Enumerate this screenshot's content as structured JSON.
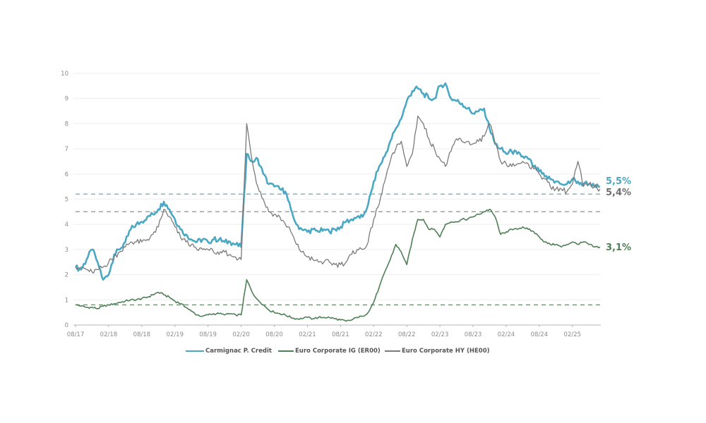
{
  "chart_data": {
    "type": "line",
    "title": "",
    "xlabel": "",
    "ylabel": "",
    "ylim": [
      0,
      10
    ],
    "yticks": [
      "0",
      "1",
      "2",
      "3",
      "4",
      "5",
      "6",
      "7",
      "8",
      "9",
      "10"
    ],
    "grid": true,
    "x_start": "08/17",
    "x_step": "1 month",
    "xticks": [
      {
        "label": "08/17",
        "index": 0
      },
      {
        "label": "02/18",
        "index": 6
      },
      {
        "label": "08/18",
        "index": 12
      },
      {
        "label": "02/19",
        "index": 18
      },
      {
        "label": "08/19",
        "index": 24
      },
      {
        "label": "02/20",
        "index": 30
      },
      {
        "label": "08/20",
        "index": 36
      },
      {
        "label": "02/21",
        "index": 42
      },
      {
        "label": "08/21",
        "index": 48
      },
      {
        "label": "02/22",
        "index": 54
      },
      {
        "label": "08/22",
        "index": 60
      },
      {
        "label": "02/23",
        "index": 66
      },
      {
        "label": "08/23",
        "index": 72
      },
      {
        "label": "02/24",
        "index": 78
      },
      {
        "label": "08/24",
        "index": 84
      },
      {
        "label": "02/25",
        "index": 90
      }
    ],
    "series": [
      {
        "name": "Carmignac P. Credit",
        "color": "#4aa8c4",
        "end_label": "5,5%",
        "reference_line": 5.2,
        "values": [
          2.3,
          2.2,
          2.6,
          3.0,
          2.5,
          1.8,
          2.0,
          2.8,
          3.0,
          3.3,
          3.8,
          4.0,
          4.1,
          4.3,
          4.4,
          4.6,
          4.9,
          4.6,
          4.2,
          3.8,
          3.6,
          3.4,
          3.3,
          3.4,
          3.3,
          3.4,
          3.4,
          3.3,
          3.3,
          3.2,
          3.1,
          6.8,
          6.5,
          6.6,
          6.0,
          5.6,
          5.5,
          5.4,
          5.3,
          4.6,
          4.0,
          3.8,
          3.7,
          3.8,
          3.7,
          3.8,
          3.7,
          3.8,
          3.9,
          4.1,
          4.2,
          4.3,
          4.3,
          4.8,
          5.7,
          6.3,
          6.7,
          7.3,
          7.8,
          8.2,
          8.9,
          9.3,
          9.4,
          9.2,
          9.0,
          9.0,
          9.5,
          9.6,
          9.0,
          8.9,
          8.8,
          8.6,
          8.4,
          8.5,
          8.6,
          7.8,
          7.2,
          7.0,
          6.8,
          6.9,
          6.8,
          6.7,
          6.6,
          6.3,
          6.1,
          5.9,
          5.8,
          5.7,
          5.6,
          5.6,
          5.8,
          5.7,
          5.6,
          5.6,
          5.5,
          5.5
        ]
      },
      {
        "name": "Euro Corporate IG (ER00)",
        "color": "#4f7f55",
        "end_label": "3,1%",
        "reference_line": 0.8,
        "values": [
          0.8,
          0.75,
          0.7,
          0.7,
          0.65,
          0.75,
          0.8,
          0.85,
          0.9,
          0.95,
          1.0,
          1.0,
          1.05,
          1.1,
          1.2,
          1.3,
          1.2,
          1.1,
          0.95,
          0.85,
          0.7,
          0.55,
          0.4,
          0.35,
          0.4,
          0.45,
          0.45,
          0.4,
          0.45,
          0.4,
          0.4,
          1.8,
          1.3,
          1.0,
          0.8,
          0.6,
          0.5,
          0.45,
          0.4,
          0.3,
          0.25,
          0.25,
          0.3,
          0.25,
          0.3,
          0.3,
          0.3,
          0.25,
          0.2,
          0.15,
          0.2,
          0.3,
          0.35,
          0.5,
          0.9,
          1.5,
          2.1,
          2.6,
          3.2,
          2.9,
          2.4,
          3.4,
          4.2,
          4.2,
          3.8,
          3.8,
          3.5,
          4.0,
          4.1,
          4.1,
          4.2,
          4.2,
          4.3,
          4.4,
          4.5,
          4.6,
          4.3,
          3.6,
          3.7,
          3.8,
          3.8,
          3.9,
          3.8,
          3.7,
          3.5,
          3.3,
          3.2,
          3.2,
          3.1,
          3.2,
          3.3,
          3.2,
          3.3,
          3.2,
          3.1,
          3.1
        ]
      },
      {
        "name": "Euro Corporate HY (HE00)",
        "color": "#7a7a7a",
        "end_label": "5,4%",
        "reference_line": 4.5,
        "values": [
          2.3,
          2.3,
          2.2,
          2.1,
          2.2,
          2.3,
          2.5,
          2.7,
          2.9,
          3.1,
          3.3,
          3.3,
          3.3,
          3.4,
          3.6,
          3.9,
          4.6,
          4.3,
          3.9,
          3.5,
          3.3,
          3.2,
          3.0,
          3.0,
          3.0,
          2.9,
          2.8,
          2.9,
          2.8,
          2.7,
          2.6,
          8.0,
          6.5,
          5.5,
          5.0,
          4.5,
          4.4,
          4.3,
          4.0,
          3.7,
          3.2,
          2.9,
          2.7,
          2.6,
          2.5,
          2.5,
          2.5,
          2.4,
          2.4,
          2.5,
          2.8,
          3.0,
          3.0,
          3.3,
          4.2,
          4.8,
          5.7,
          6.5,
          7.0,
          7.3,
          6.3,
          6.8,
          8.3,
          8.0,
          7.4,
          7.0,
          6.6,
          6.3,
          6.9,
          7.4,
          7.3,
          7.3,
          7.2,
          7.3,
          7.5,
          8.0,
          7.2,
          6.5,
          6.4,
          6.3,
          6.4,
          6.5,
          6.4,
          6.2,
          6.0,
          5.8,
          5.5,
          5.4,
          5.4,
          5.3,
          5.6,
          6.5,
          5.5,
          5.6,
          5.5,
          5.4
        ]
      }
    ],
    "legend_position": "bottom"
  }
}
